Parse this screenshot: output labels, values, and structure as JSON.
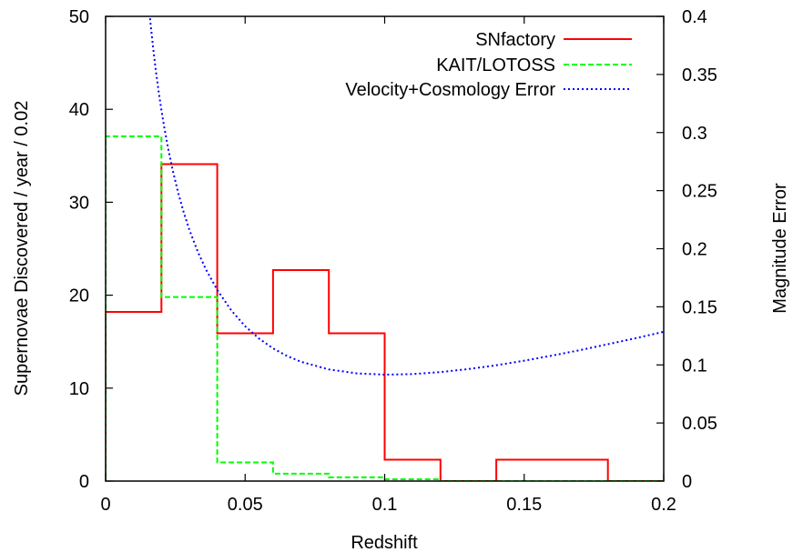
{
  "chart_data": {
    "type": "line",
    "title": "",
    "xlabel": "Redshift",
    "ylabel": "Supernovae Discovered / year / 0.02",
    "y2label": "Magnitude Error",
    "xlim": [
      0,
      0.2
    ],
    "ylim": [
      0,
      50
    ],
    "y2lim": [
      0,
      0.4
    ],
    "xticks": [
      "0",
      "0.05",
      "0.1",
      "0.15",
      "0.2"
    ],
    "yticks": [
      "0",
      "10",
      "20",
      "30",
      "40",
      "50"
    ],
    "y2ticks": [
      "0",
      "0.05",
      "0.1",
      "0.15",
      "0.2",
      "0.25",
      "0.3",
      "0.35",
      "0.4"
    ],
    "grid": false,
    "legend_position": "top-right",
    "series": [
      {
        "name": "SNfactory",
        "axis": "left",
        "style": "solid",
        "color": "#ff0000",
        "bin_edges": [
          0,
          0.02,
          0.04,
          0.06,
          0.08,
          0.1,
          0.12,
          0.14,
          0.16,
          0.18,
          0.2
        ],
        "values": [
          18.2,
          34.1,
          15.9,
          22.7,
          15.9,
          2.3,
          0,
          2.3,
          2.3,
          0
        ]
      },
      {
        "name": "KAIT/LOTOSS",
        "axis": "left",
        "style": "dashed",
        "color": "#00ff00",
        "bin_edges": [
          0,
          0.02,
          0.04,
          0.06,
          0.08,
          0.1,
          0.12,
          0.14,
          0.16,
          0.18,
          0.2
        ],
        "values": [
          37.1,
          19.8,
          2.0,
          0.8,
          0.4,
          0.2,
          0,
          0,
          0,
          0
        ]
      },
      {
        "name": "Velocity+Cosmology Error",
        "axis": "right",
        "style": "dotted",
        "color": "#0000ff",
        "x": [
          0.015,
          0.016,
          0.017,
          0.018,
          0.019,
          0.02,
          0.021,
          0.0225,
          0.024,
          0.026,
          0.028,
          0.03,
          0.033,
          0.036,
          0.04,
          0.045,
          0.05,
          0.055,
          0.06,
          0.065,
          0.07,
          0.08,
          0.09,
          0.1,
          0.11,
          0.12,
          0.13,
          0.14,
          0.15,
          0.16,
          0.17,
          0.18,
          0.19,
          0.2
        ],
        "y": [
          0.4217,
          0.3961,
          0.3734,
          0.3533,
          0.3354,
          0.3192,
          0.3047,
          0.2852,
          0.268,
          0.2482,
          0.2312,
          0.2164,
          0.1976,
          0.1819,
          0.1646,
          0.147,
          0.1333,
          0.1226,
          0.1142,
          0.1077,
          0.1027,
          0.0961,
          0.0927,
          0.0916,
          0.0921,
          0.0938,
          0.0964,
          0.0997,
          0.1036,
          0.108,
          0.1127,
          0.1178,
          0.123,
          0.1285
        ]
      }
    ]
  }
}
